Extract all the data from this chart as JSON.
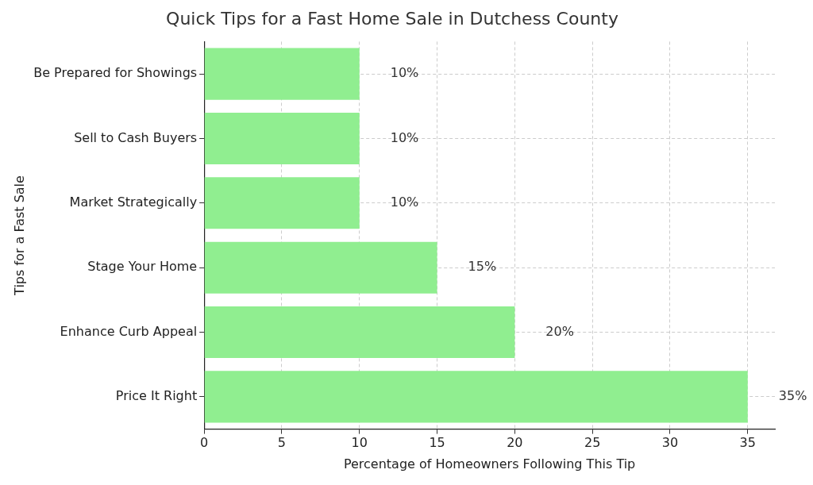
{
  "chart_data": {
    "type": "bar",
    "orientation": "horizontal",
    "title": "Quick Tips for a Fast Home Sale in Dutchess County",
    "xlabel": "Percentage of Homeowners Following This Tip",
    "ylabel": "Tips for a Fast Sale",
    "categories": [
      "Be Prepared for Showings",
      "Sell to Cash Buyers",
      "Market Strategically",
      "Stage Your Home",
      "Enhance Curb Appeal",
      "Price It Right"
    ],
    "values": [
      10,
      10,
      10,
      15,
      20,
      35
    ],
    "value_labels": [
      "10%",
      "10%",
      "10%",
      "15%",
      "20%",
      "35%"
    ],
    "color": "#90ee90",
    "xlim": [
      0,
      36.75
    ],
    "xticks": [
      0,
      5,
      10,
      15,
      20,
      25,
      30,
      35
    ],
    "grid": true,
    "legend": false
  }
}
